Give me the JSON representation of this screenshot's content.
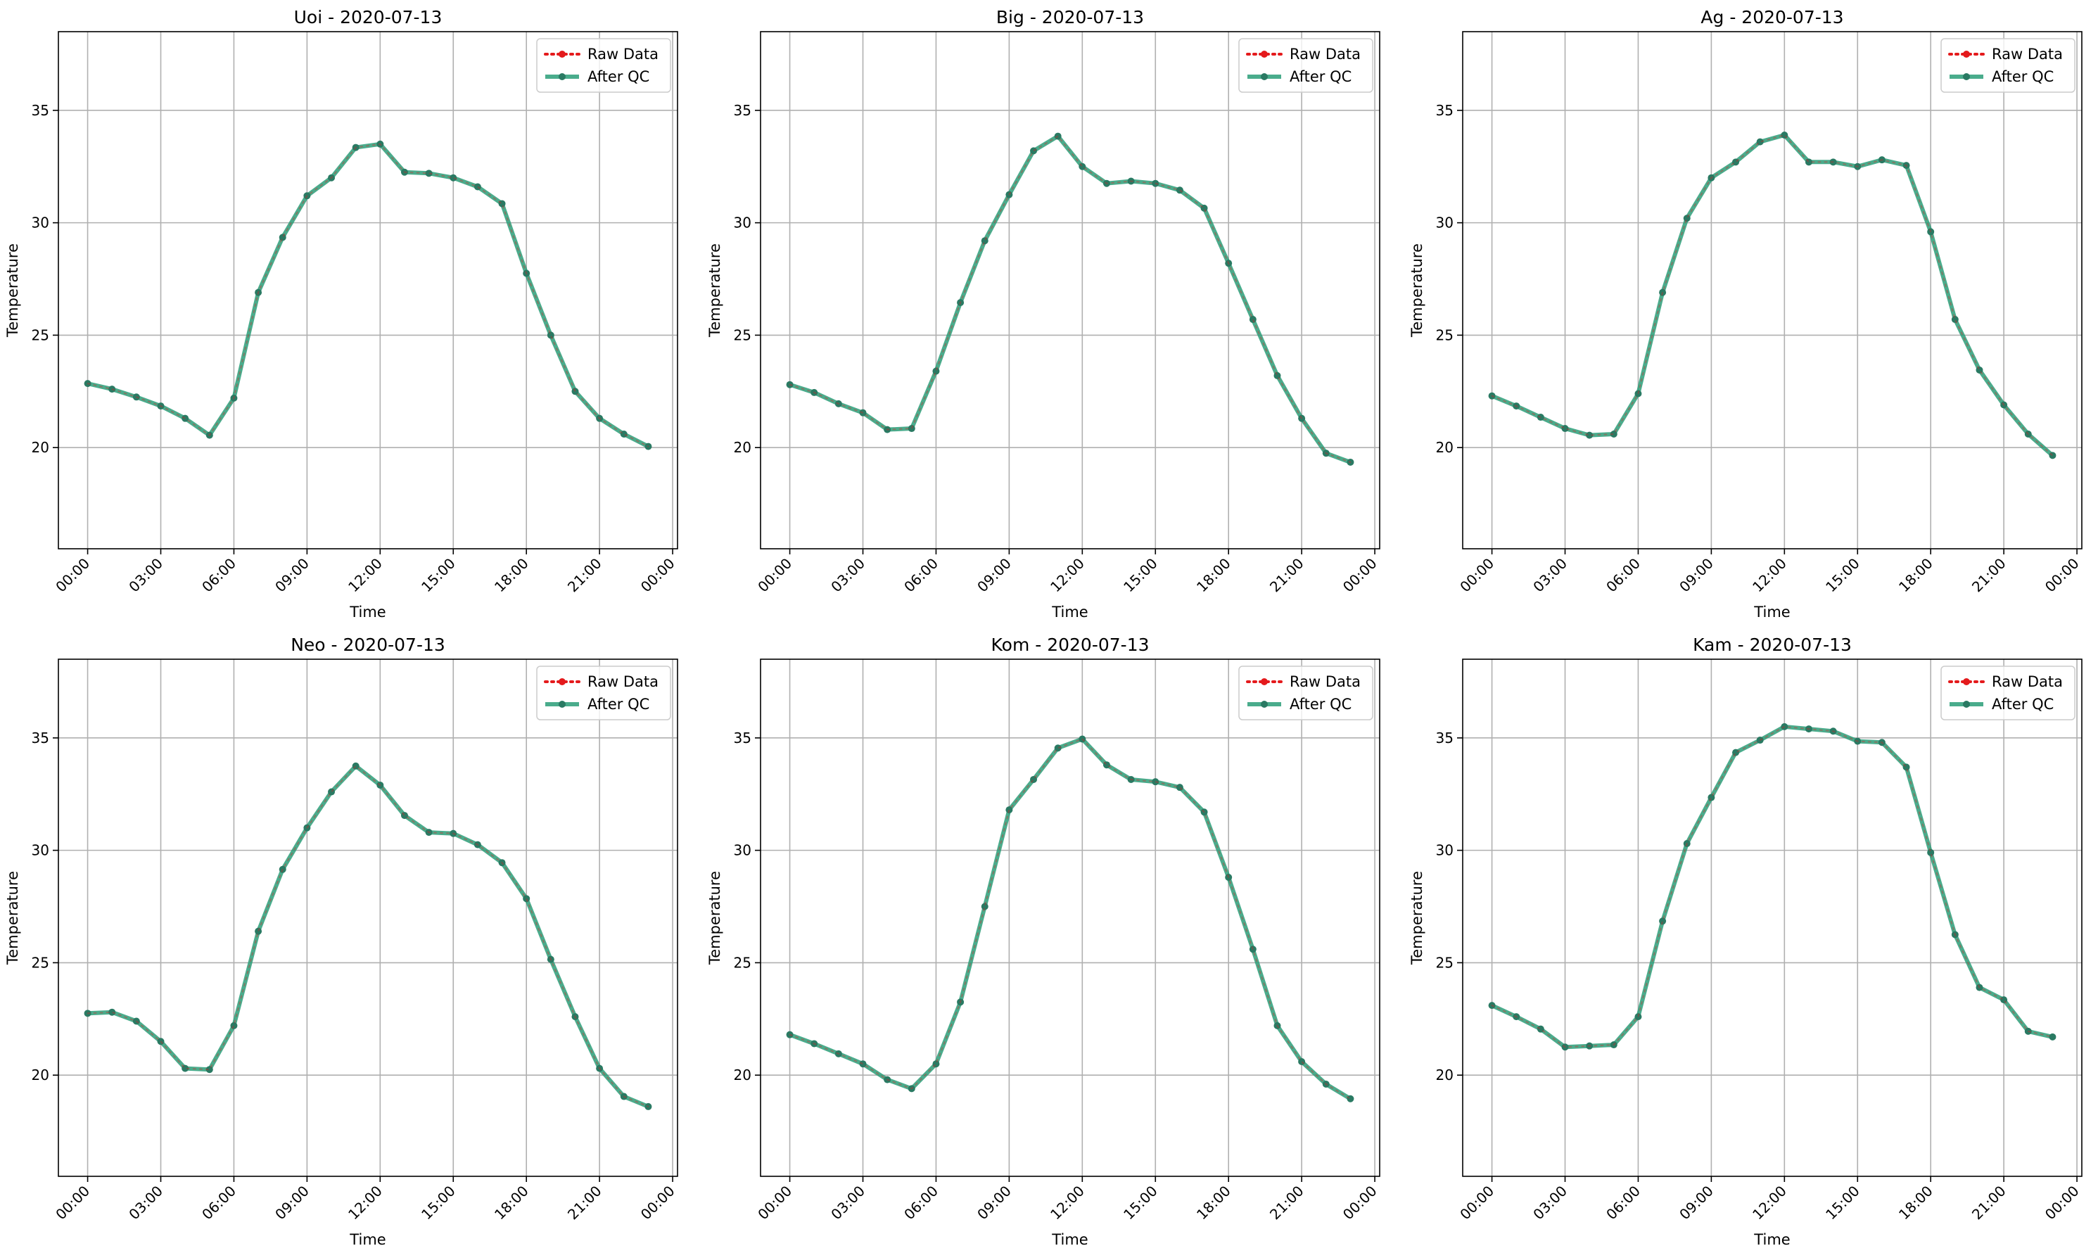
{
  "figure": {
    "colors": {
      "raw": "#e41a1c",
      "qc": "#2a9d78",
      "qc_marker": "#2a7a63"
    }
  },
  "chart_data": [
    {
      "type": "line",
      "title": "Uoi - 2020-07-13",
      "xlabel": "Time",
      "ylabel": "Temperature",
      "ylim": [
        15.5,
        38.5
      ],
      "xlim_hours": [
        -1.2,
        24.2
      ],
      "x_ticks": [
        "00:00",
        "03:00",
        "06:00",
        "09:00",
        "12:00",
        "15:00",
        "18:00",
        "21:00",
        "00:00"
      ],
      "y_ticks": [
        20,
        25,
        30,
        35
      ],
      "grid": true,
      "legend": "top-right",
      "x": [
        "00:00",
        "01:00",
        "02:00",
        "03:00",
        "04:00",
        "05:00",
        "06:00",
        "07:00",
        "08:00",
        "09:00",
        "10:00",
        "11:00",
        "12:00",
        "13:00",
        "14:00",
        "15:00",
        "16:00",
        "17:00",
        "18:00",
        "19:00",
        "20:00",
        "21:00",
        "22:00",
        "23:00"
      ],
      "series": [
        {
          "name": "Raw Data",
          "values": [
            22.85,
            22.6,
            22.25,
            21.85,
            21.3,
            20.55,
            22.2,
            26.9,
            29.35,
            31.2,
            32.0,
            33.35,
            33.5,
            32.25,
            32.2,
            32.0,
            31.6,
            30.85,
            27.75,
            25.0,
            22.5,
            21.3,
            20.6,
            20.05
          ]
        },
        {
          "name": "After QC",
          "values": [
            22.85,
            22.6,
            22.25,
            21.85,
            21.3,
            20.55,
            22.2,
            26.9,
            29.35,
            31.2,
            32.0,
            33.35,
            33.5,
            32.25,
            32.2,
            32.0,
            31.6,
            30.85,
            27.75,
            25.0,
            22.5,
            21.3,
            20.6,
            20.05
          ]
        }
      ]
    },
    {
      "type": "line",
      "title": "Big - 2020-07-13",
      "xlabel": "Time",
      "ylabel": "Temperature",
      "ylim": [
        15.5,
        38.5
      ],
      "xlim_hours": [
        -1.2,
        24.2
      ],
      "x_ticks": [
        "00:00",
        "03:00",
        "06:00",
        "09:00",
        "12:00",
        "15:00",
        "18:00",
        "21:00",
        "00:00"
      ],
      "y_ticks": [
        20,
        25,
        30,
        35
      ],
      "grid": true,
      "legend": "top-right",
      "x": [
        "00:00",
        "01:00",
        "02:00",
        "03:00",
        "04:00",
        "05:00",
        "06:00",
        "07:00",
        "08:00",
        "09:00",
        "10:00",
        "11:00",
        "12:00",
        "13:00",
        "14:00",
        "15:00",
        "16:00",
        "17:00",
        "18:00",
        "19:00",
        "20:00",
        "21:00",
        "22:00",
        "23:00"
      ],
      "series": [
        {
          "name": "Raw Data",
          "values": [
            22.8,
            22.45,
            21.95,
            21.55,
            20.8,
            20.85,
            23.4,
            26.45,
            29.2,
            31.25,
            33.2,
            33.85,
            32.5,
            31.75,
            31.85,
            31.75,
            31.45,
            30.65,
            28.2,
            25.7,
            23.2,
            21.3,
            19.75,
            19.35
          ]
        },
        {
          "name": "After QC",
          "values": [
            22.8,
            22.45,
            21.95,
            21.55,
            20.8,
            20.85,
            23.4,
            26.45,
            29.2,
            31.25,
            33.2,
            33.85,
            32.5,
            31.75,
            31.85,
            31.75,
            31.45,
            30.65,
            28.2,
            25.7,
            23.2,
            21.3,
            19.75,
            19.35
          ]
        }
      ]
    },
    {
      "type": "line",
      "title": "Ag - 2020-07-13",
      "xlabel": "Time",
      "ylabel": "Temperature",
      "ylim": [
        15.5,
        38.5
      ],
      "xlim_hours": [
        -1.2,
        24.2
      ],
      "x_ticks": [
        "00:00",
        "03:00",
        "06:00",
        "09:00",
        "12:00",
        "15:00",
        "18:00",
        "21:00",
        "00:00"
      ],
      "y_ticks": [
        20,
        25,
        30,
        35
      ],
      "grid": true,
      "legend": "top-right",
      "x": [
        "00:00",
        "01:00",
        "02:00",
        "03:00",
        "04:00",
        "05:00",
        "06:00",
        "07:00",
        "08:00",
        "09:00",
        "10:00",
        "11:00",
        "12:00",
        "13:00",
        "14:00",
        "15:00",
        "16:00",
        "17:00",
        "18:00",
        "19:00",
        "20:00",
        "21:00",
        "22:00",
        "23:00"
      ],
      "series": [
        {
          "name": "Raw Data",
          "values": [
            22.3,
            21.85,
            21.35,
            20.85,
            20.55,
            20.6,
            22.4,
            26.9,
            30.2,
            32.0,
            32.7,
            33.6,
            33.9,
            32.7,
            32.7,
            32.5,
            32.8,
            32.55,
            29.6,
            25.7,
            23.45,
            21.9,
            20.6,
            19.65
          ]
        },
        {
          "name": "After QC",
          "values": [
            22.3,
            21.85,
            21.35,
            20.85,
            20.55,
            20.6,
            22.4,
            26.9,
            30.2,
            32.0,
            32.7,
            33.6,
            33.9,
            32.7,
            32.7,
            32.5,
            32.8,
            32.55,
            29.6,
            25.7,
            23.45,
            21.9,
            20.6,
            19.65
          ]
        }
      ]
    },
    {
      "type": "line",
      "title": "Neo - 2020-07-13",
      "xlabel": "Time",
      "ylabel": "Temperature",
      "ylim": [
        15.5,
        38.5
      ],
      "xlim_hours": [
        -1.2,
        24.2
      ],
      "x_ticks": [
        "00:00",
        "03:00",
        "06:00",
        "09:00",
        "12:00",
        "15:00",
        "18:00",
        "21:00",
        "00:00"
      ],
      "y_ticks": [
        20,
        25,
        30,
        35
      ],
      "grid": true,
      "legend": "top-right",
      "x": [
        "00:00",
        "01:00",
        "02:00",
        "03:00",
        "04:00",
        "05:00",
        "06:00",
        "07:00",
        "08:00",
        "09:00",
        "10:00",
        "11:00",
        "12:00",
        "13:00",
        "14:00",
        "15:00",
        "16:00",
        "17:00",
        "18:00",
        "19:00",
        "20:00",
        "21:00",
        "22:00",
        "23:00"
      ],
      "series": [
        {
          "name": "Raw Data",
          "values": [
            22.75,
            22.8,
            22.4,
            21.5,
            20.3,
            20.25,
            22.2,
            26.4,
            29.15,
            31.0,
            32.6,
            33.75,
            32.9,
            31.55,
            30.8,
            30.75,
            30.25,
            29.45,
            27.85,
            25.15,
            22.6,
            20.3,
            19.05,
            18.6
          ]
        },
        {
          "name": "After QC",
          "values": [
            22.75,
            22.8,
            22.4,
            21.5,
            20.3,
            20.25,
            22.2,
            26.4,
            29.15,
            31.0,
            32.6,
            33.75,
            32.9,
            31.55,
            30.8,
            30.75,
            30.25,
            29.45,
            27.85,
            25.15,
            22.6,
            20.3,
            19.05,
            18.6
          ]
        }
      ]
    },
    {
      "type": "line",
      "title": "Kom - 2020-07-13",
      "xlabel": "Time",
      "ylabel": "Temperature",
      "ylim": [
        15.5,
        38.5
      ],
      "xlim_hours": [
        -1.2,
        24.2
      ],
      "x_ticks": [
        "00:00",
        "03:00",
        "06:00",
        "09:00",
        "12:00",
        "15:00",
        "18:00",
        "21:00",
        "00:00"
      ],
      "y_ticks": [
        20,
        25,
        30,
        35
      ],
      "grid": true,
      "legend": "top-right",
      "x": [
        "00:00",
        "01:00",
        "02:00",
        "03:00",
        "04:00",
        "05:00",
        "06:00",
        "07:00",
        "08:00",
        "09:00",
        "10:00",
        "11:00",
        "12:00",
        "13:00",
        "14:00",
        "15:00",
        "16:00",
        "17:00",
        "18:00",
        "19:00",
        "20:00",
        "21:00",
        "22:00",
        "23:00"
      ],
      "series": [
        {
          "name": "Raw Data",
          "values": [
            21.8,
            21.4,
            20.95,
            20.5,
            19.8,
            19.4,
            20.5,
            23.25,
            27.5,
            31.8,
            33.15,
            34.55,
            34.95,
            33.8,
            33.15,
            33.05,
            32.8,
            31.7,
            28.8,
            25.6,
            22.2,
            20.6,
            19.6,
            18.95
          ]
        },
        {
          "name": "After QC",
          "values": [
            21.8,
            21.4,
            20.95,
            20.5,
            19.8,
            19.4,
            20.5,
            23.25,
            27.5,
            31.8,
            33.15,
            34.55,
            34.95,
            33.8,
            33.15,
            33.05,
            32.8,
            31.7,
            28.8,
            25.6,
            22.2,
            20.6,
            19.6,
            18.95
          ]
        }
      ]
    },
    {
      "type": "line",
      "title": "Kam - 2020-07-13",
      "xlabel": "Time",
      "ylabel": "Temperature",
      "ylim": [
        15.5,
        38.5
      ],
      "xlim_hours": [
        -1.2,
        24.2
      ],
      "x_ticks": [
        "00:00",
        "03:00",
        "06:00",
        "09:00",
        "12:00",
        "15:00",
        "18:00",
        "21:00",
        "00:00"
      ],
      "y_ticks": [
        20,
        25,
        30,
        35
      ],
      "grid": true,
      "legend": "top-right",
      "x": [
        "00:00",
        "01:00",
        "02:00",
        "03:00",
        "04:00",
        "05:00",
        "06:00",
        "07:00",
        "08:00",
        "09:00",
        "10:00",
        "11:00",
        "12:00",
        "13:00",
        "14:00",
        "15:00",
        "16:00",
        "17:00",
        "18:00",
        "19:00",
        "20:00",
        "21:00",
        "22:00",
        "23:00"
      ],
      "series": [
        {
          "name": "Raw Data",
          "values": [
            23.1,
            22.6,
            22.05,
            21.25,
            21.3,
            21.35,
            22.6,
            26.85,
            30.3,
            32.35,
            34.35,
            34.9,
            35.5,
            35.4,
            35.3,
            34.85,
            34.8,
            33.7,
            29.9,
            26.25,
            23.9,
            23.35,
            21.95,
            21.7
          ]
        },
        {
          "name": "After QC",
          "values": [
            23.1,
            22.6,
            22.05,
            21.25,
            21.3,
            21.35,
            22.6,
            26.85,
            30.3,
            32.35,
            34.35,
            34.9,
            35.5,
            35.4,
            35.3,
            34.85,
            34.8,
            33.7,
            29.9,
            26.25,
            23.9,
            23.35,
            21.95,
            21.7
          ]
        }
      ]
    }
  ]
}
